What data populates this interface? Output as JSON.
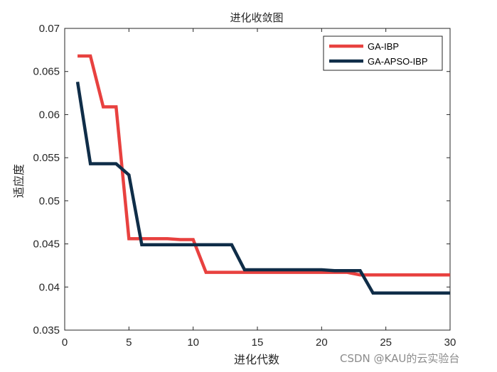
{
  "chart_data": {
    "type": "line",
    "title": "进化收敛图",
    "xlabel": "进化代数",
    "ylabel": "适应度",
    "xlim": [
      0,
      30
    ],
    "ylim": [
      0.035,
      0.07
    ],
    "xticks": [
      0,
      5,
      10,
      15,
      20,
      25,
      30
    ],
    "xtick_labels": [
      "0",
      "5",
      "10",
      "15",
      "20",
      "25",
      "30"
    ],
    "yticks": [
      0.035,
      0.04,
      0.045,
      0.05,
      0.055,
      0.06,
      0.065,
      0.07
    ],
    "ytick_labels": [
      "0.035",
      "0.04",
      "0.045",
      "0.05",
      "0.055",
      "0.06",
      "0.065",
      "0.07"
    ],
    "grid": false,
    "legend_position": "top-right",
    "series": [
      {
        "name": "GA-IBP",
        "color": "#e8413f",
        "x": [
          1,
          2,
          3,
          4,
          5,
          6,
          7,
          8,
          9,
          10,
          11,
          12,
          13,
          14,
          15,
          16,
          17,
          18,
          19,
          20,
          21,
          22,
          23,
          24,
          25,
          26,
          27,
          28,
          29,
          30
        ],
        "y": [
          0.0668,
          0.0668,
          0.0609,
          0.0609,
          0.0456,
          0.0456,
          0.0456,
          0.0456,
          0.0455,
          0.0455,
          0.0417,
          0.0417,
          0.0417,
          0.0417,
          0.0417,
          0.0417,
          0.0417,
          0.0417,
          0.0417,
          0.0417,
          0.0417,
          0.0417,
          0.0414,
          0.0414,
          0.0414,
          0.0414,
          0.0414,
          0.0414,
          0.0414,
          0.0414
        ]
      },
      {
        "name": "GA-APSO-IBP",
        "color": "#0f2d48",
        "x": [
          1,
          2,
          3,
          4,
          5,
          6,
          7,
          8,
          9,
          10,
          11,
          12,
          13,
          14,
          15,
          16,
          17,
          18,
          19,
          20,
          21,
          22,
          23,
          24,
          25,
          26,
          27,
          28,
          29,
          30
        ],
        "y": [
          0.0638,
          0.0543,
          0.0543,
          0.0543,
          0.053,
          0.0449,
          0.0449,
          0.0449,
          0.0449,
          0.0449,
          0.0449,
          0.0449,
          0.0449,
          0.042,
          0.042,
          0.042,
          0.042,
          0.042,
          0.042,
          0.042,
          0.0419,
          0.0419,
          0.0419,
          0.0393,
          0.0393,
          0.0393,
          0.0393,
          0.0393,
          0.0393,
          0.0393
        ]
      }
    ]
  },
  "watermark": "CSDN @KAU的云实验台"
}
